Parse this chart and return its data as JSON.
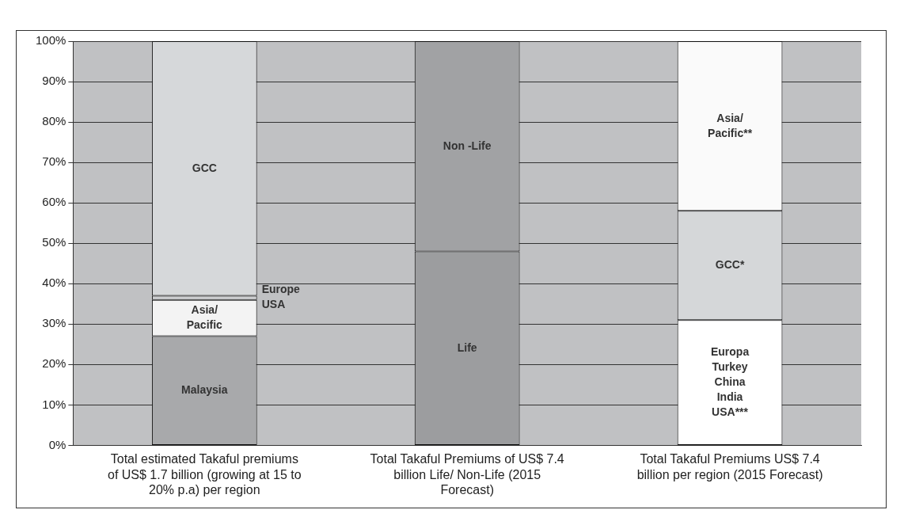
{
  "chart_data": {
    "type": "bar",
    "stacked": true,
    "categories": [
      "Total estimated Takaful premiums of US$ 1.7 billion (growing at 15 to 20% p.a) per region",
      "Total Takaful Premiums of US$ 7.4 billion Life/ Non-Life (2015 Forecast)",
      "Total Takaful Premiums US$ 7.4 billion per region (2015 Forecast)"
    ],
    "series": [
      {
        "name": "Malaysia",
        "color": "#a8a9ab",
        "values": [
          27,
          null,
          null
        ]
      },
      {
        "name": "Asia/ Pacific",
        "color": "#f3f3f3",
        "values": [
          9,
          null,
          null
        ]
      },
      {
        "name": "Europe USA",
        "color": "#cdced0",
        "values": [
          1,
          null,
          null
        ]
      },
      {
        "name": "GCC",
        "color": "#d6d8da",
        "values": [
          63,
          null,
          null
        ]
      },
      {
        "name": "Life",
        "color": "#9c9d9f",
        "values": [
          null,
          48,
          null
        ]
      },
      {
        "name": "Non -Life",
        "color": "#a1a2a4",
        "values": [
          null,
          52,
          null
        ]
      },
      {
        "name": "Europa Turkey China India USA***",
        "color": "#ffffff",
        "values": [
          null,
          null,
          31
        ]
      },
      {
        "name": "GCC*",
        "color": "#d5d7d9",
        "values": [
          null,
          null,
          27
        ]
      },
      {
        "name": "Asia/ Pacific**",
        "color": "#fafafa",
        "values": [
          null,
          null,
          42
        ]
      }
    ],
    "ylim": [
      0,
      100
    ],
    "yticks": [
      {
        "value": 0,
        "label": "0%"
      },
      {
        "value": 10,
        "label": "10%"
      },
      {
        "value": 20,
        "label": "20%"
      },
      {
        "value": 30,
        "label": "30%"
      },
      {
        "value": 40,
        "label": "40%"
      },
      {
        "value": 50,
        "label": "50%"
      },
      {
        "value": 60,
        "label": "60%"
      },
      {
        "value": 70,
        "label": "70%"
      },
      {
        "value": 80,
        "label": "80%"
      },
      {
        "value": 90,
        "label": "90%"
      },
      {
        "value": 100,
        "label": "100%"
      }
    ],
    "grid": "y",
    "legend": false
  }
}
